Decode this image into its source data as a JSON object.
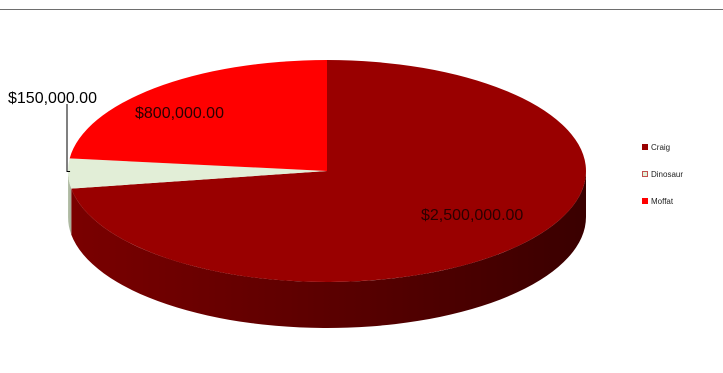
{
  "chart_data": {
    "type": "pie",
    "title": "",
    "style": "3d",
    "legend_position": "right",
    "categories": [
      "Craig",
      "Dinosaur",
      "Moffat"
    ],
    "values": [
      2500000,
      150000,
      800000
    ],
    "data_labels": [
      "$2,500,000.00",
      "$150,000.00",
      "$800,000.00"
    ],
    "colors": {
      "Craig": "#990000",
      "Dinosaur": "#e2eed7",
      "Moffat": "#ff0000"
    },
    "legend": [
      {
        "label": "Craig",
        "color": "#990000"
      },
      {
        "label": "Dinosaur",
        "color": "#e2eed7"
      },
      {
        "label": "Moffat",
        "color": "#ff0000"
      }
    ]
  }
}
